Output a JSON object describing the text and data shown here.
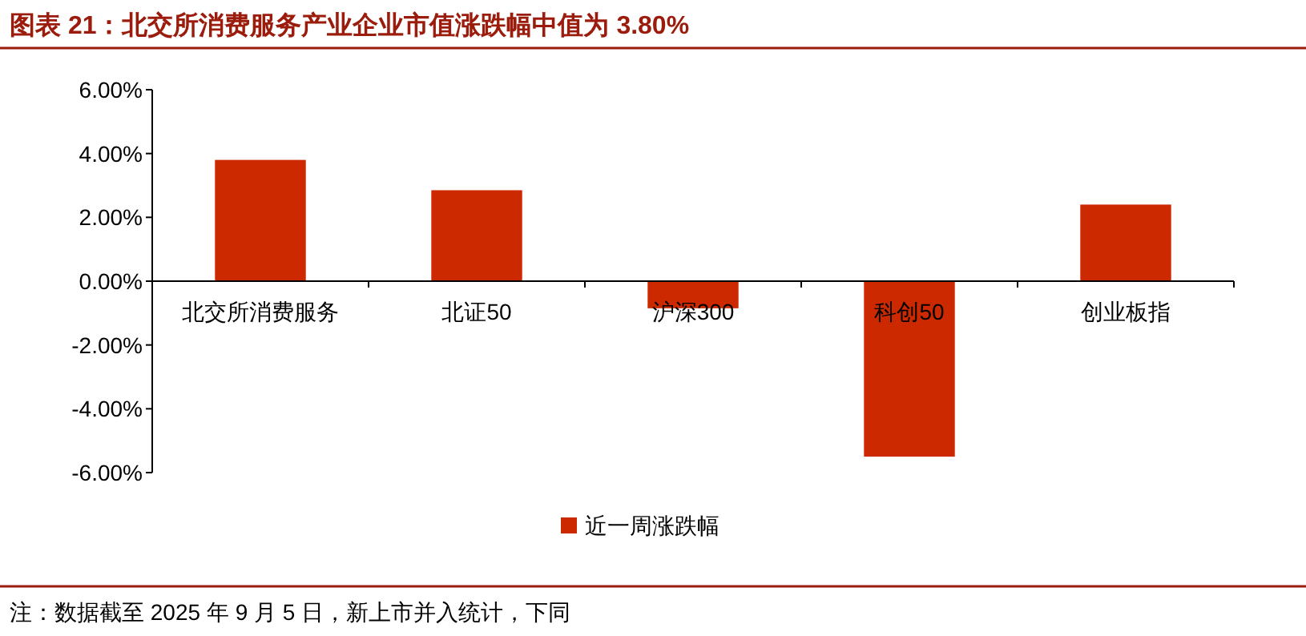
{
  "chart_data": {
    "type": "bar",
    "title": "图表 21：北交所消费服务产业企业市值涨跌幅中值为 3.80%",
    "categories": [
      "北交所消费服务",
      "北证50",
      "沪深300",
      "科创50",
      "创业板指"
    ],
    "series": [
      {
        "name": "近一周涨跌幅",
        "color": "#cc2900",
        "values": [
          3.8,
          2.85,
          -0.85,
          -5.5,
          2.4
        ]
      }
    ],
    "ylim": [
      -6,
      6
    ],
    "yticks": [
      {
        "value": 6,
        "label": "6.00%"
      },
      {
        "value": 4,
        "label": "4.00%"
      },
      {
        "value": 2,
        "label": "2.00%"
      },
      {
        "value": 0,
        "label": "0.00%"
      },
      {
        "value": -2,
        "label": "-2.00%"
      },
      {
        "value": -4,
        "label": "-4.00%"
      },
      {
        "value": -6,
        "label": "-6.00%"
      }
    ],
    "legend": "bottom",
    "grid": false,
    "annotations": [
      "注：数据截至 2025 年 9 月 5 日，新上市并入统计，下同"
    ]
  }
}
